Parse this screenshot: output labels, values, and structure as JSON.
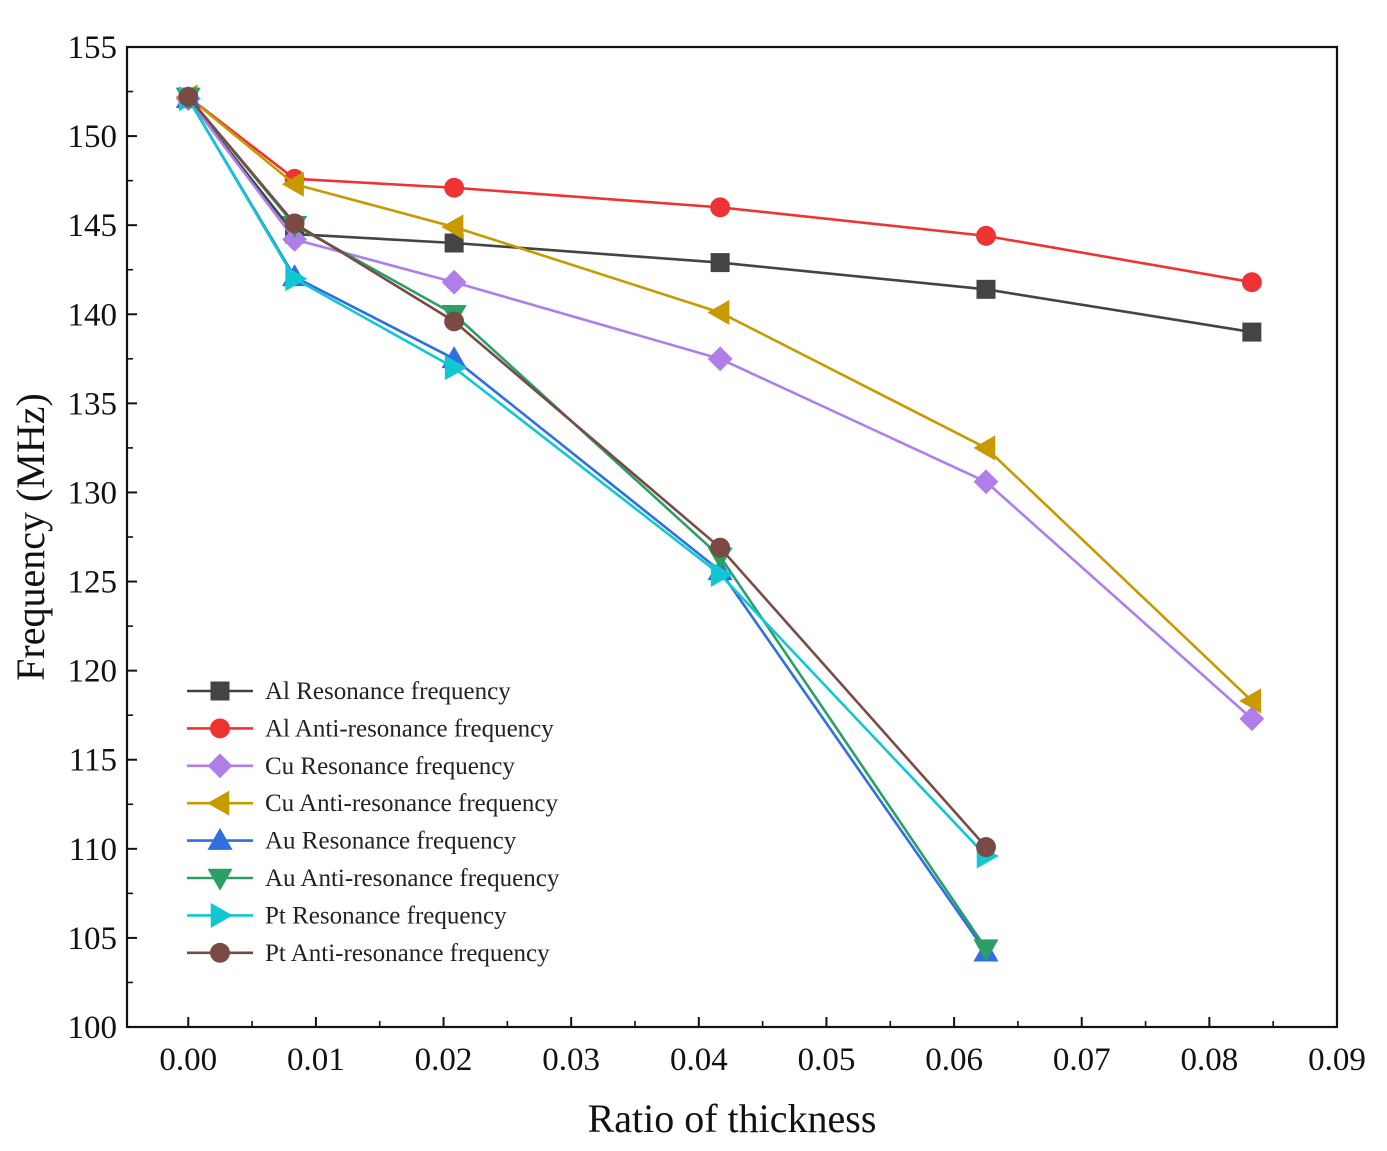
{
  "chart_data": {
    "type": "line",
    "xlabel": "Ratio of thickness",
    "ylabel": "Frequency (MHz)",
    "xlim": [
      -0.0048,
      0.09
    ],
    "ylim": [
      100,
      155
    ],
    "xticks": [
      0.0,
      0.01,
      0.02,
      0.03,
      0.04,
      0.05,
      0.06,
      0.07,
      0.08,
      0.09
    ],
    "xtick_labels": [
      "0.00",
      "0.01",
      "0.02",
      "0.03",
      "0.04",
      "0.05",
      "0.06",
      "0.07",
      "0.08",
      "0.09"
    ],
    "yticks": [
      100,
      105,
      110,
      115,
      120,
      125,
      130,
      135,
      140,
      145,
      150,
      155
    ],
    "ytick_labels": [
      "100",
      "105",
      "110",
      "115",
      "120",
      "125",
      "130",
      "135",
      "140",
      "145",
      "150",
      "155"
    ],
    "legend_position": "bottom-left",
    "series": [
      {
        "name": "Al Resonance frequency",
        "color": "#444444",
        "marker": "square",
        "x": [
          0,
          0.00833,
          0.02083,
          0.04167,
          0.0625,
          0.08333
        ],
        "y": [
          152.1,
          144.5,
          144.0,
          142.9,
          141.4,
          139.0
        ]
      },
      {
        "name": "Al Anti-resonance frequency",
        "color": "#ee3333",
        "marker": "circle",
        "x": [
          0,
          0.00833,
          0.02083,
          0.04167,
          0.0625,
          0.08333
        ],
        "y": [
          152.2,
          147.6,
          147.1,
          146.0,
          144.4,
          141.8
        ]
      },
      {
        "name": "Cu Resonance frequency",
        "color": "#b07ee8",
        "marker": "diamond",
        "x": [
          0,
          0.00833,
          0.02083,
          0.04167,
          0.0625,
          0.08333
        ],
        "y": [
          152.1,
          144.2,
          141.8,
          137.5,
          130.6,
          117.3
        ]
      },
      {
        "name": "Cu Anti-resonance frequency",
        "color": "#c79a00",
        "marker": "triangle-left",
        "x": [
          0,
          0.00833,
          0.02083,
          0.04167,
          0.0625,
          0.08333
        ],
        "y": [
          152.2,
          147.3,
          144.9,
          140.1,
          132.5,
          118.3
        ]
      },
      {
        "name": "Au Resonance frequency",
        "color": "#2f6fe0",
        "marker": "triangle-up",
        "x": [
          0,
          0.00833,
          0.02083,
          0.04167,
          0.0625
        ],
        "y": [
          152.1,
          142.1,
          137.5,
          125.6,
          104.2
        ]
      },
      {
        "name": "Au Anti-resonance frequency",
        "color": "#2aa066",
        "marker": "triangle-down",
        "x": [
          0,
          0.00833,
          0.02083,
          0.04167,
          0.0625
        ],
        "y": [
          152.2,
          145.0,
          140.0,
          126.4,
          104.4
        ]
      },
      {
        "name": "Pt Resonance frequency",
        "color": "#11c7d4",
        "marker": "triangle-right",
        "x": [
          0,
          0.00833,
          0.02083,
          0.04167,
          0.0625
        ],
        "y": [
          152.1,
          142.0,
          137.0,
          125.4,
          109.6
        ]
      },
      {
        "name": "Pt Anti-resonance frequency",
        "color": "#7a4a44",
        "marker": "circle",
        "x": [
          0,
          0.00833,
          0.02083,
          0.04167,
          0.0625
        ],
        "y": [
          152.2,
          145.1,
          139.6,
          126.9,
          110.1
        ]
      }
    ]
  }
}
